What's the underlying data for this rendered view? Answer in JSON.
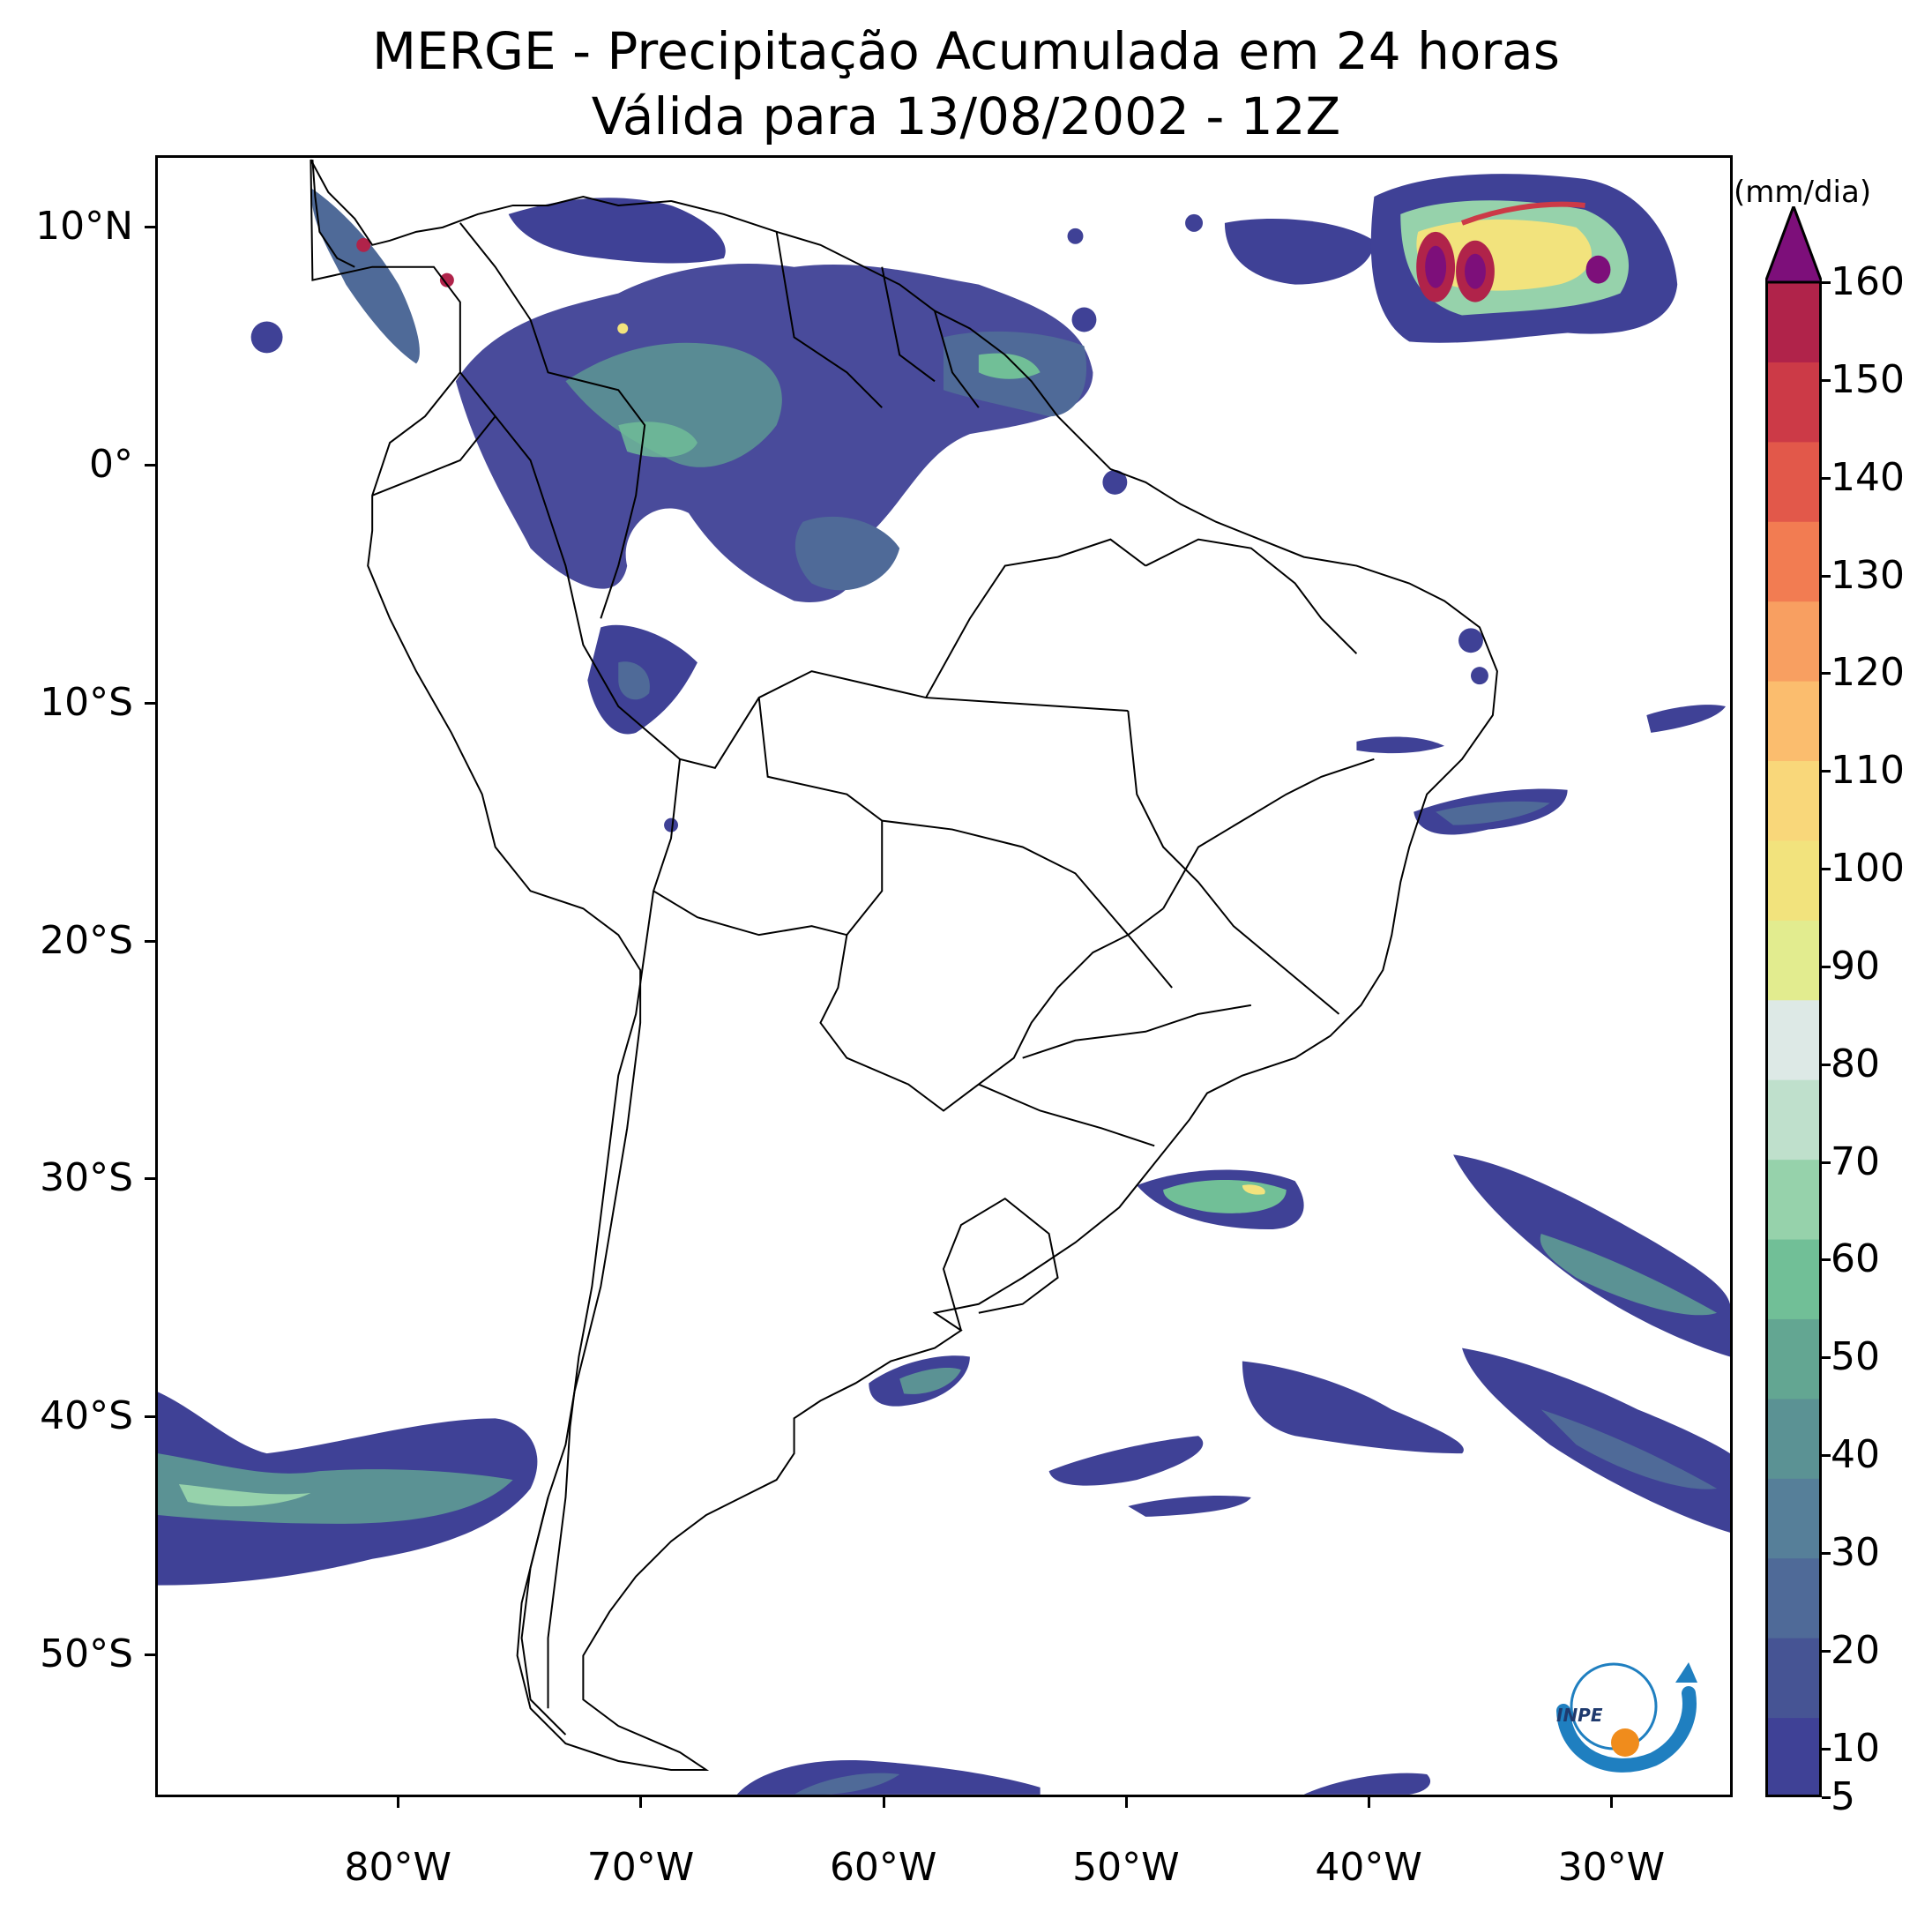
{
  "title": {
    "line1": "MERGE - Precipitação Acumulada em 24 horas",
    "line2": "Válida para 13/08/2002 - 12Z"
  },
  "axes": {
    "lat_labels": [
      "10°N",
      "0°",
      "10°S",
      "20°S",
      "30°S",
      "40°S",
      "50°S"
    ],
    "lon_labels": [
      "80°W",
      "70°W",
      "60°W",
      "50°W",
      "40°W",
      "30°W"
    ],
    "lat_range": [
      -56,
      13
    ],
    "lon_range": [
      -90,
      -25
    ]
  },
  "colorbar": {
    "unit": "(mm/dia)",
    "min": 5,
    "max": 160,
    "extend": "max",
    "tick_labels": [
      "5",
      "10",
      "20",
      "30",
      "40",
      "50",
      "60",
      "70",
      "80",
      "90",
      "100",
      "110",
      "120",
      "130",
      "140",
      "150",
      "160"
    ],
    "colors": [
      "#3f4196",
      "#465494",
      "#4f6a98",
      "#567f99",
      "#5b9294",
      "#63a692",
      "#71bf97",
      "#96d2ab",
      "#bfe0cc",
      "#dde9e6",
      "#e2ec8f",
      "#f2e37d",
      "#f9d77a",
      "#fbbd6e",
      "#f89f61",
      "#f27c52",
      "#e2584a",
      "#cc3a47",
      "#b0234a"
    ],
    "extend_color": "#7d0f7a"
  },
  "logo": {
    "text": "INPE",
    "colors": {
      "arc": "#1f7fc0",
      "dot": "#f08c1c"
    }
  },
  "map_colors": {
    "border": "#000000",
    "low": "#3f4196",
    "mid": "#5b9294",
    "light": "#96d2ab",
    "yellow": "#f2e37d",
    "red": "#b0234a",
    "purple": "#7d0f7a"
  }
}
